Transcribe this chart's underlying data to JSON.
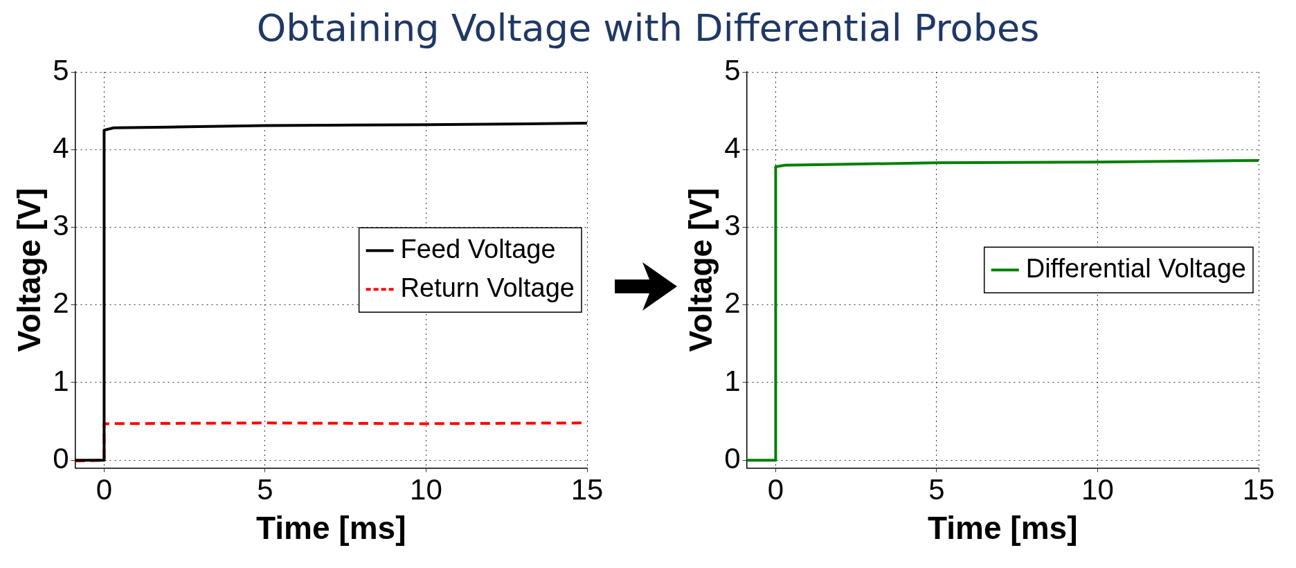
{
  "chart_data": [
    {
      "type": "line",
      "title": "Obtaining Voltage with Differential Probes",
      "xlabel": "Time [ms]",
      "ylabel": "Voltage [V]",
      "xlim": [
        -0.9,
        15
      ],
      "ylim": [
        -0.1,
        5
      ],
      "xticks": [
        0,
        5,
        10,
        15
      ],
      "yticks": [
        0,
        1,
        2,
        3,
        4,
        5
      ],
      "grid": true,
      "legend": "center right",
      "line_style": "solid",
      "marker": "none",
      "series": [
        {
          "name": "Feed Voltage",
          "color": "#000000",
          "x": [
            -0.9,
            0,
            0,
            0.3,
            2,
            5,
            10,
            15
          ],
          "values": [
            0,
            0,
            4.25,
            4.28,
            4.29,
            4.31,
            4.32,
            4.34
          ]
        },
        {
          "name": "Return Voltage",
          "color": "#ff0000",
          "line_style": "dashed",
          "x": [
            -0.9,
            0,
            0,
            5,
            10,
            15
          ],
          "values": [
            -0.01,
            0,
            0.47,
            0.48,
            0.47,
            0.48
          ]
        }
      ]
    },
    {
      "type": "line",
      "xlabel": "Time [ms]",
      "ylabel": "Voltage [V]",
      "xlim": [
        -0.9,
        15
      ],
      "ylim": [
        -0.1,
        5
      ],
      "xticks": [
        0,
        5,
        10,
        15
      ],
      "yticks": [
        0,
        1,
        2,
        3,
        4,
        5
      ],
      "grid": true,
      "legend": "center right",
      "line_style": "solid",
      "marker": "none",
      "series": [
        {
          "name": "Differential Voltage",
          "color": "#008000",
          "x": [
            -0.9,
            0,
            0,
            0.3,
            2,
            5,
            10,
            15
          ],
          "values": [
            0,
            0,
            3.78,
            3.8,
            3.81,
            3.83,
            3.84,
            3.86
          ]
        }
      ]
    }
  ]
}
